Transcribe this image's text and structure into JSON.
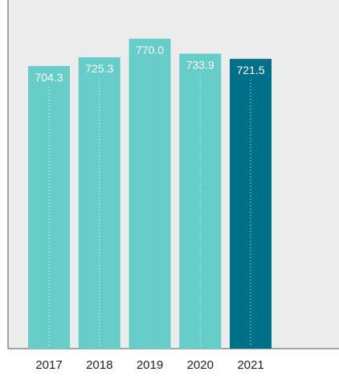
{
  "chart_data": {
    "type": "bar",
    "categories": [
      "2017",
      "2018",
      "2019",
      "2020",
      "2021"
    ],
    "values": [
      704.3,
      725.3,
      770.0,
      733.9,
      721.5
    ],
    "value_labels": [
      "704.3",
      "725.3",
      "770.0",
      "733.9",
      "721.5"
    ],
    "title": "",
    "xlabel": "",
    "ylabel": "",
    "grid": false,
    "legend": "none",
    "colors": {
      "bar": "#66cdc9",
      "highlight": "#006f8a",
      "panel": "#ececec",
      "axis": "#555555",
      "label_text": "#ffffff",
      "tick_text": "#222222",
      "dotted_line": "#ffffff"
    },
    "highlight_category": "2021"
  }
}
